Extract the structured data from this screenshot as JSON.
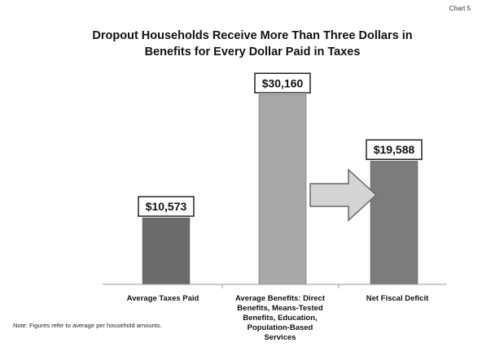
{
  "chart_data": {
    "type": "bar",
    "label": "Chart 5",
    "title_lines": [
      "Dropout Households Receive More Than Three Dollars in",
      "Benefits for Every Dollar Paid in Taxes"
    ],
    "categories": [
      "Average Taxes Paid",
      "Average Benefits: Direct Benefits, Means-Tested Benefits, Education, Population-Based Services",
      "Net Fiscal Deficit"
    ],
    "category_lines": [
      [
        "Average Taxes Paid"
      ],
      [
        "Average Benefits: Direct",
        "Benefits, Means-Tested",
        "Benefits, Education,",
        "Population-Based",
        "Services"
      ],
      [
        "Net Fiscal Deficit"
      ]
    ],
    "values": [
      10573,
      30160,
      19588
    ],
    "data_labels": [
      "$10,573",
      "$30,160",
      "$19,588"
    ],
    "bar_colors": [
      "#6b6b6b",
      "#a9a9a9",
      "#7c7c7c"
    ],
    "ylim": [
      0,
      32000
    ],
    "xlabel": "",
    "ylabel": "",
    "grid": false,
    "note": "Note: Figures refer to average per household amounts."
  }
}
